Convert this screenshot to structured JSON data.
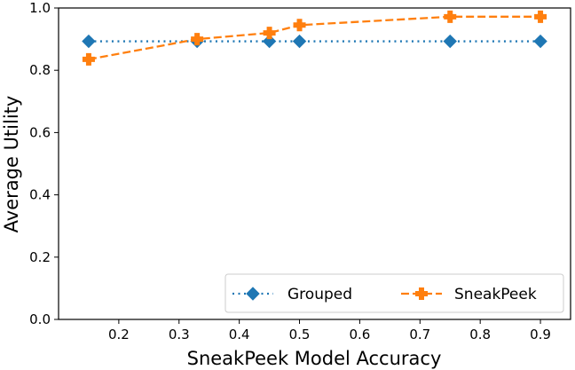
{
  "chart_data": {
    "type": "line",
    "title": "",
    "xlabel": "SneakPeek Model Accuracy",
    "ylabel": "Average Utility",
    "xlim": [
      0.1,
      0.95
    ],
    "ylim": [
      0.0,
      1.0
    ],
    "xticks": [
      0.2,
      0.3,
      0.4,
      0.5,
      0.6,
      0.7,
      0.8,
      0.9
    ],
    "yticks": [
      0.0,
      0.2,
      0.4,
      0.6,
      0.8,
      1.0
    ],
    "xtick_labels": [
      "0.2",
      "0.3",
      "0.4",
      "0.5",
      "0.6",
      "0.7",
      "0.8",
      "0.9"
    ],
    "ytick_labels": [
      "0.0",
      "0.2",
      "0.4",
      "0.6",
      "0.8",
      "1.0"
    ],
    "grid": false,
    "legend_position": "lower-right",
    "series": [
      {
        "name": "Grouped",
        "color": "#1f77b4",
        "line_style": "dotted",
        "marker": "diamond",
        "x": [
          0.15,
          0.33,
          0.45,
          0.5,
          0.75,
          0.9
        ],
        "y": [
          0.893,
          0.893,
          0.893,
          0.893,
          0.893,
          0.893
        ]
      },
      {
        "name": "SneakPeek",
        "color": "#ff7f0e",
        "line_style": "dashed",
        "marker": "plus",
        "x": [
          0.15,
          0.33,
          0.45,
          0.5,
          0.75,
          0.9
        ],
        "y": [
          0.835,
          0.9,
          0.92,
          0.945,
          0.972,
          0.972
        ]
      }
    ]
  }
}
